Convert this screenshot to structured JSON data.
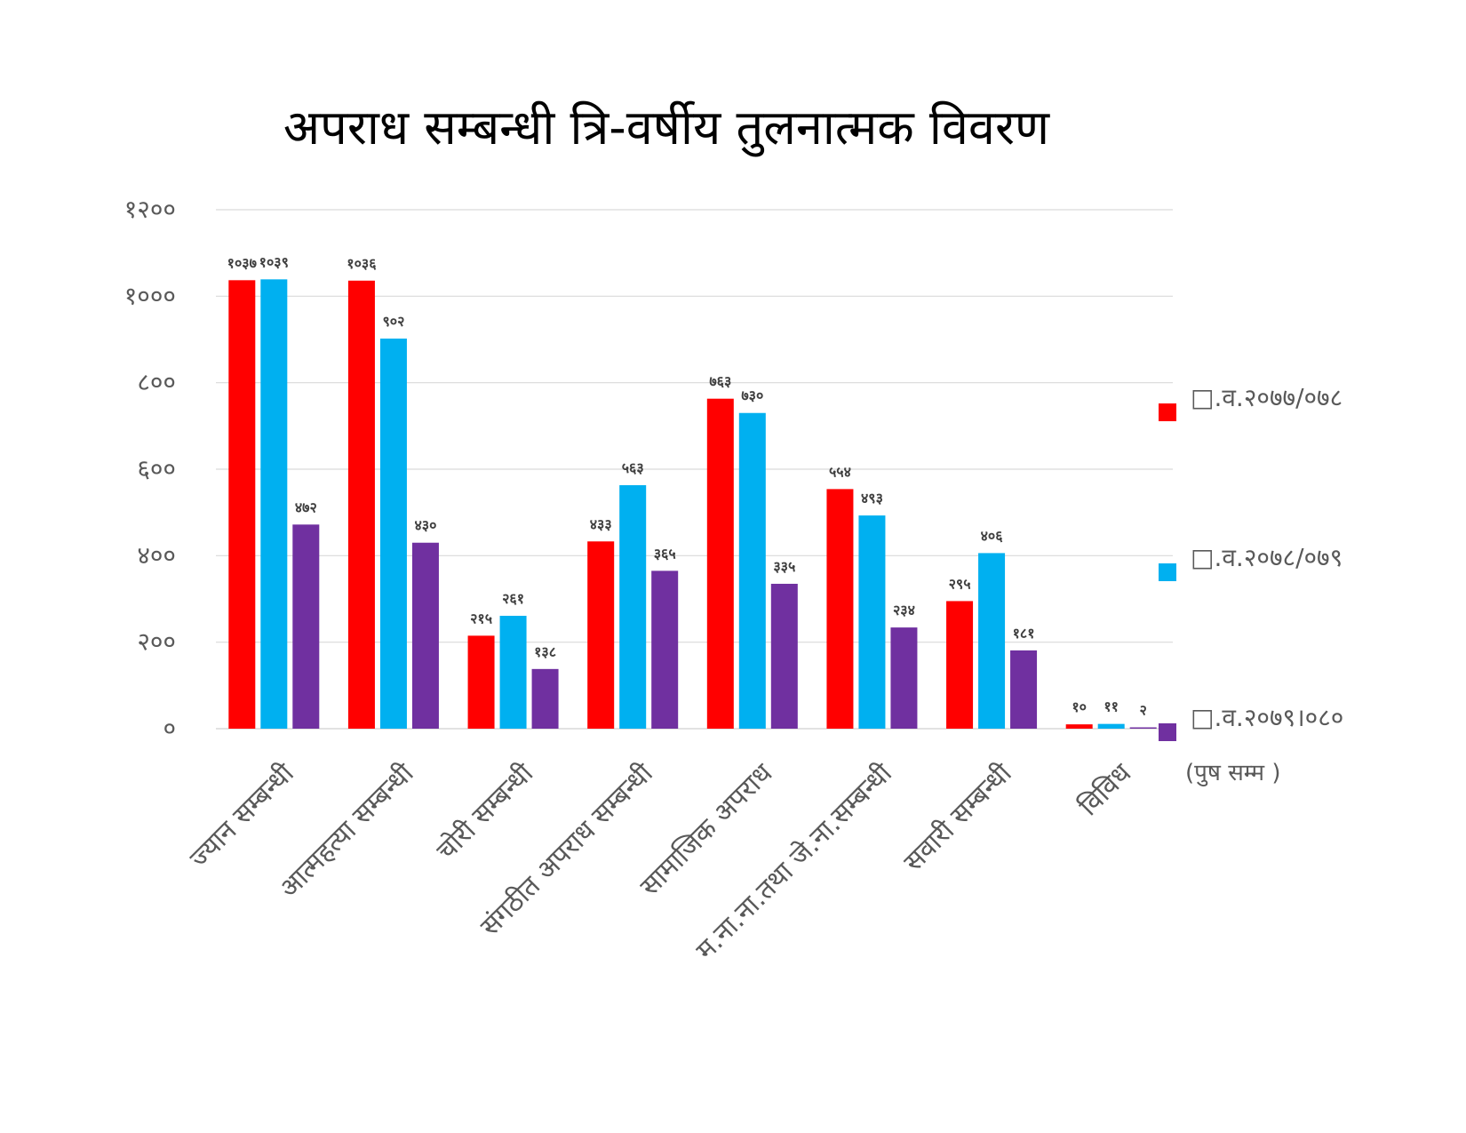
{
  "chart_data": {
    "type": "bar",
    "title": "अपराध सम्बन्धी त्रि-वर्षीय तुलनात्मक विवरण",
    "ylim": [
      0,
      1200
    ],
    "yticks": [
      "०",
      "२००",
      "४००",
      "६००",
      "८००",
      "१०००",
      "१२००"
    ],
    "ytick_values": [
      0,
      200,
      400,
      600,
      800,
      1000,
      1200
    ],
    "grid": true,
    "legend_position": "right",
    "categories": [
      "ज्यान सम्बन्धी",
      "आत्महत्या सम्बन्धी",
      "चोरी सम्बन्धी",
      "संगठीत अपराध सम्बन्धी",
      "सामाजिक अपराध",
      "म.ना.ना.तथा जे.ना.सम्बन्धी",
      "सवारी सम्बन्धी",
      "विविध"
    ],
    "series": [
      {
        "name": "□.व.२०७७/०७८",
        "color": "#ff0000",
        "values": [
          1037,
          1036,
          215,
          433,
          763,
          554,
          295,
          10
        ],
        "labels": [
          "१०३७",
          "१०३६",
          "२१५",
          "४३३",
          "७६३",
          "५५४",
          "२९५",
          "१०"
        ]
      },
      {
        "name": "□.व.२०७८/०७९",
        "color": "#00b0f0",
        "values": [
          1039,
          902,
          261,
          563,
          730,
          493,
          406,
          11
        ],
        "labels": [
          "१०३९",
          "९०२",
          "२६१",
          "५६३",
          "७३०",
          "४९३",
          "४०६",
          "११"
        ]
      },
      {
        "name": "□.व.२०७९।०८०",
        "name_note": "(पुष सम्म )",
        "color": "#7030a0",
        "values": [
          472,
          430,
          138,
          365,
          335,
          234,
          181,
          2
        ],
        "labels": [
          "४७२",
          "४३०",
          "१३८",
          "३६५",
          "३३५",
          "२३४",
          "१८१",
          "२"
        ]
      }
    ]
  }
}
